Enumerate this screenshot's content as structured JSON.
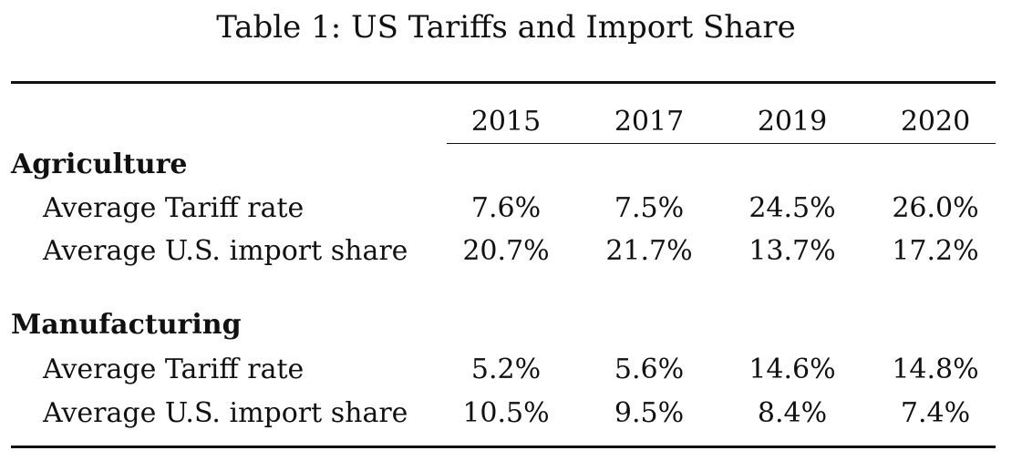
{
  "caption": "Table 1: US Tariffs and Import Share",
  "years": [
    "2015",
    "2017",
    "2019",
    "2020"
  ],
  "sections": [
    {
      "title": "Agriculture",
      "rows": [
        {
          "label": "Average Tariff rate",
          "values": [
            "7.6%",
            "7.5%",
            "24.5%",
            "26.0%"
          ]
        },
        {
          "label": "Average U.S. import share",
          "values": [
            "20.7%",
            "21.7%",
            "13.7%",
            "17.2%"
          ]
        }
      ]
    },
    {
      "title": "Manufacturing",
      "rows": [
        {
          "label": "Average Tariff rate",
          "values": [
            "5.2%",
            "5.6%",
            "14.6%",
            "14.8%"
          ]
        },
        {
          "label": "Average U.S. import share",
          "values": [
            "10.5%",
            "9.5%",
            "8.4%",
            "7.4%"
          ]
        }
      ]
    }
  ]
}
